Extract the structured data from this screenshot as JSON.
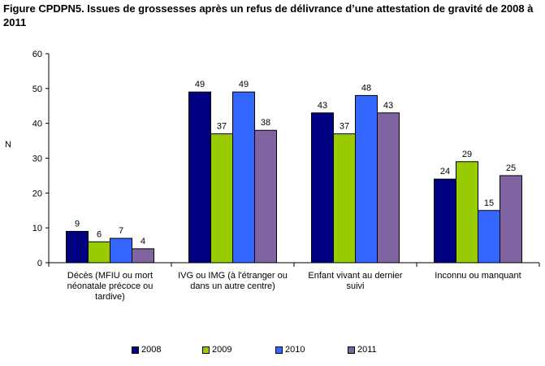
{
  "title": "Figure CPDPN5. Issues de grossesses après un refus de délivrance d’une attestation de gravité de 2008 à 2011",
  "chart_data": {
    "type": "bar",
    "title": "Figure CPDPN5. Issues de grossesses après un refus de délivrance d’une attestation de gravité de 2008 à 2011",
    "ylabel": "N",
    "xlabel": "",
    "ylim": [
      0,
      60
    ],
    "yticks": [
      0,
      10,
      20,
      30,
      40,
      50,
      60
    ],
    "grid": false,
    "legend_position": "bottom",
    "categories": [
      [
        "Décès (MFIU ou mort",
        "néonatale précoce ou",
        "tardive)"
      ],
      [
        "IVG ou IMG (à l'étranger ou",
        "dans un autre centre)"
      ],
      [
        "Enfant vivant au dernier",
        "suivi"
      ],
      [
        "Inconnu ou manquant"
      ]
    ],
    "series": [
      {
        "name": "2008",
        "color": "#000080",
        "values": [
          9,
          49,
          43,
          24
        ]
      },
      {
        "name": "2009",
        "color": "#99CC00",
        "values": [
          6,
          37,
          37,
          29
        ]
      },
      {
        "name": "2010",
        "color": "#3366FF",
        "values": [
          7,
          49,
          48,
          15
        ]
      },
      {
        "name": "2011",
        "color": "#8064A2",
        "values": [
          4,
          38,
          43,
          25
        ]
      }
    ]
  }
}
